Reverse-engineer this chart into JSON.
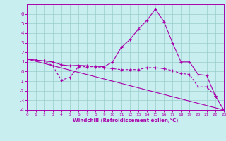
{
  "bg_color": "#c8eef0",
  "line_color": "#aa00aa",
  "grid_color": "#99cccc",
  "xlabel": "Windchill (Refroidissement éolien,°C)",
  "xmin": 0,
  "xmax": 23,
  "ymin": -4,
  "ymax": 7,
  "yticks": [
    -4,
    -3,
    -2,
    -1,
    0,
    1,
    2,
    3,
    4,
    5,
    6
  ],
  "xticks": [
    0,
    1,
    2,
    3,
    4,
    5,
    6,
    7,
    8,
    9,
    10,
    11,
    12,
    13,
    14,
    15,
    16,
    17,
    18,
    19,
    20,
    21,
    22,
    23
  ],
  "line1_x": [
    0,
    1,
    2,
    3,
    4,
    5,
    6,
    7,
    8,
    9,
    10,
    11,
    12,
    13,
    14,
    15,
    16,
    17,
    18,
    19,
    20,
    21,
    22,
    23
  ],
  "line1_y": [
    1.3,
    1.2,
    1.1,
    1.0,
    0.7,
    0.6,
    0.65,
    0.6,
    0.55,
    0.5,
    1.0,
    2.5,
    3.3,
    4.4,
    5.3,
    6.5,
    5.2,
    3.0,
    1.0,
    1.0,
    -0.3,
    -0.4,
    -2.5,
    -4.0
  ],
  "line2_x": [
    0,
    1,
    2,
    3,
    4,
    5,
    6,
    7,
    8,
    9,
    10,
    11,
    12,
    13,
    14,
    15,
    16,
    17,
    18,
    19,
    20,
    21,
    22,
    23
  ],
  "line2_y": [
    1.3,
    1.2,
    1.1,
    0.6,
    -0.9,
    -0.6,
    0.5,
    0.5,
    0.5,
    0.4,
    0.3,
    0.2,
    0.2,
    0.2,
    0.4,
    0.4,
    0.3,
    0.1,
    -0.2,
    -0.3,
    -1.6,
    -1.6,
    -2.5,
    -4.0
  ],
  "line3_x": [
    0,
    23
  ],
  "line3_y": [
    1.3,
    -4.0
  ]
}
